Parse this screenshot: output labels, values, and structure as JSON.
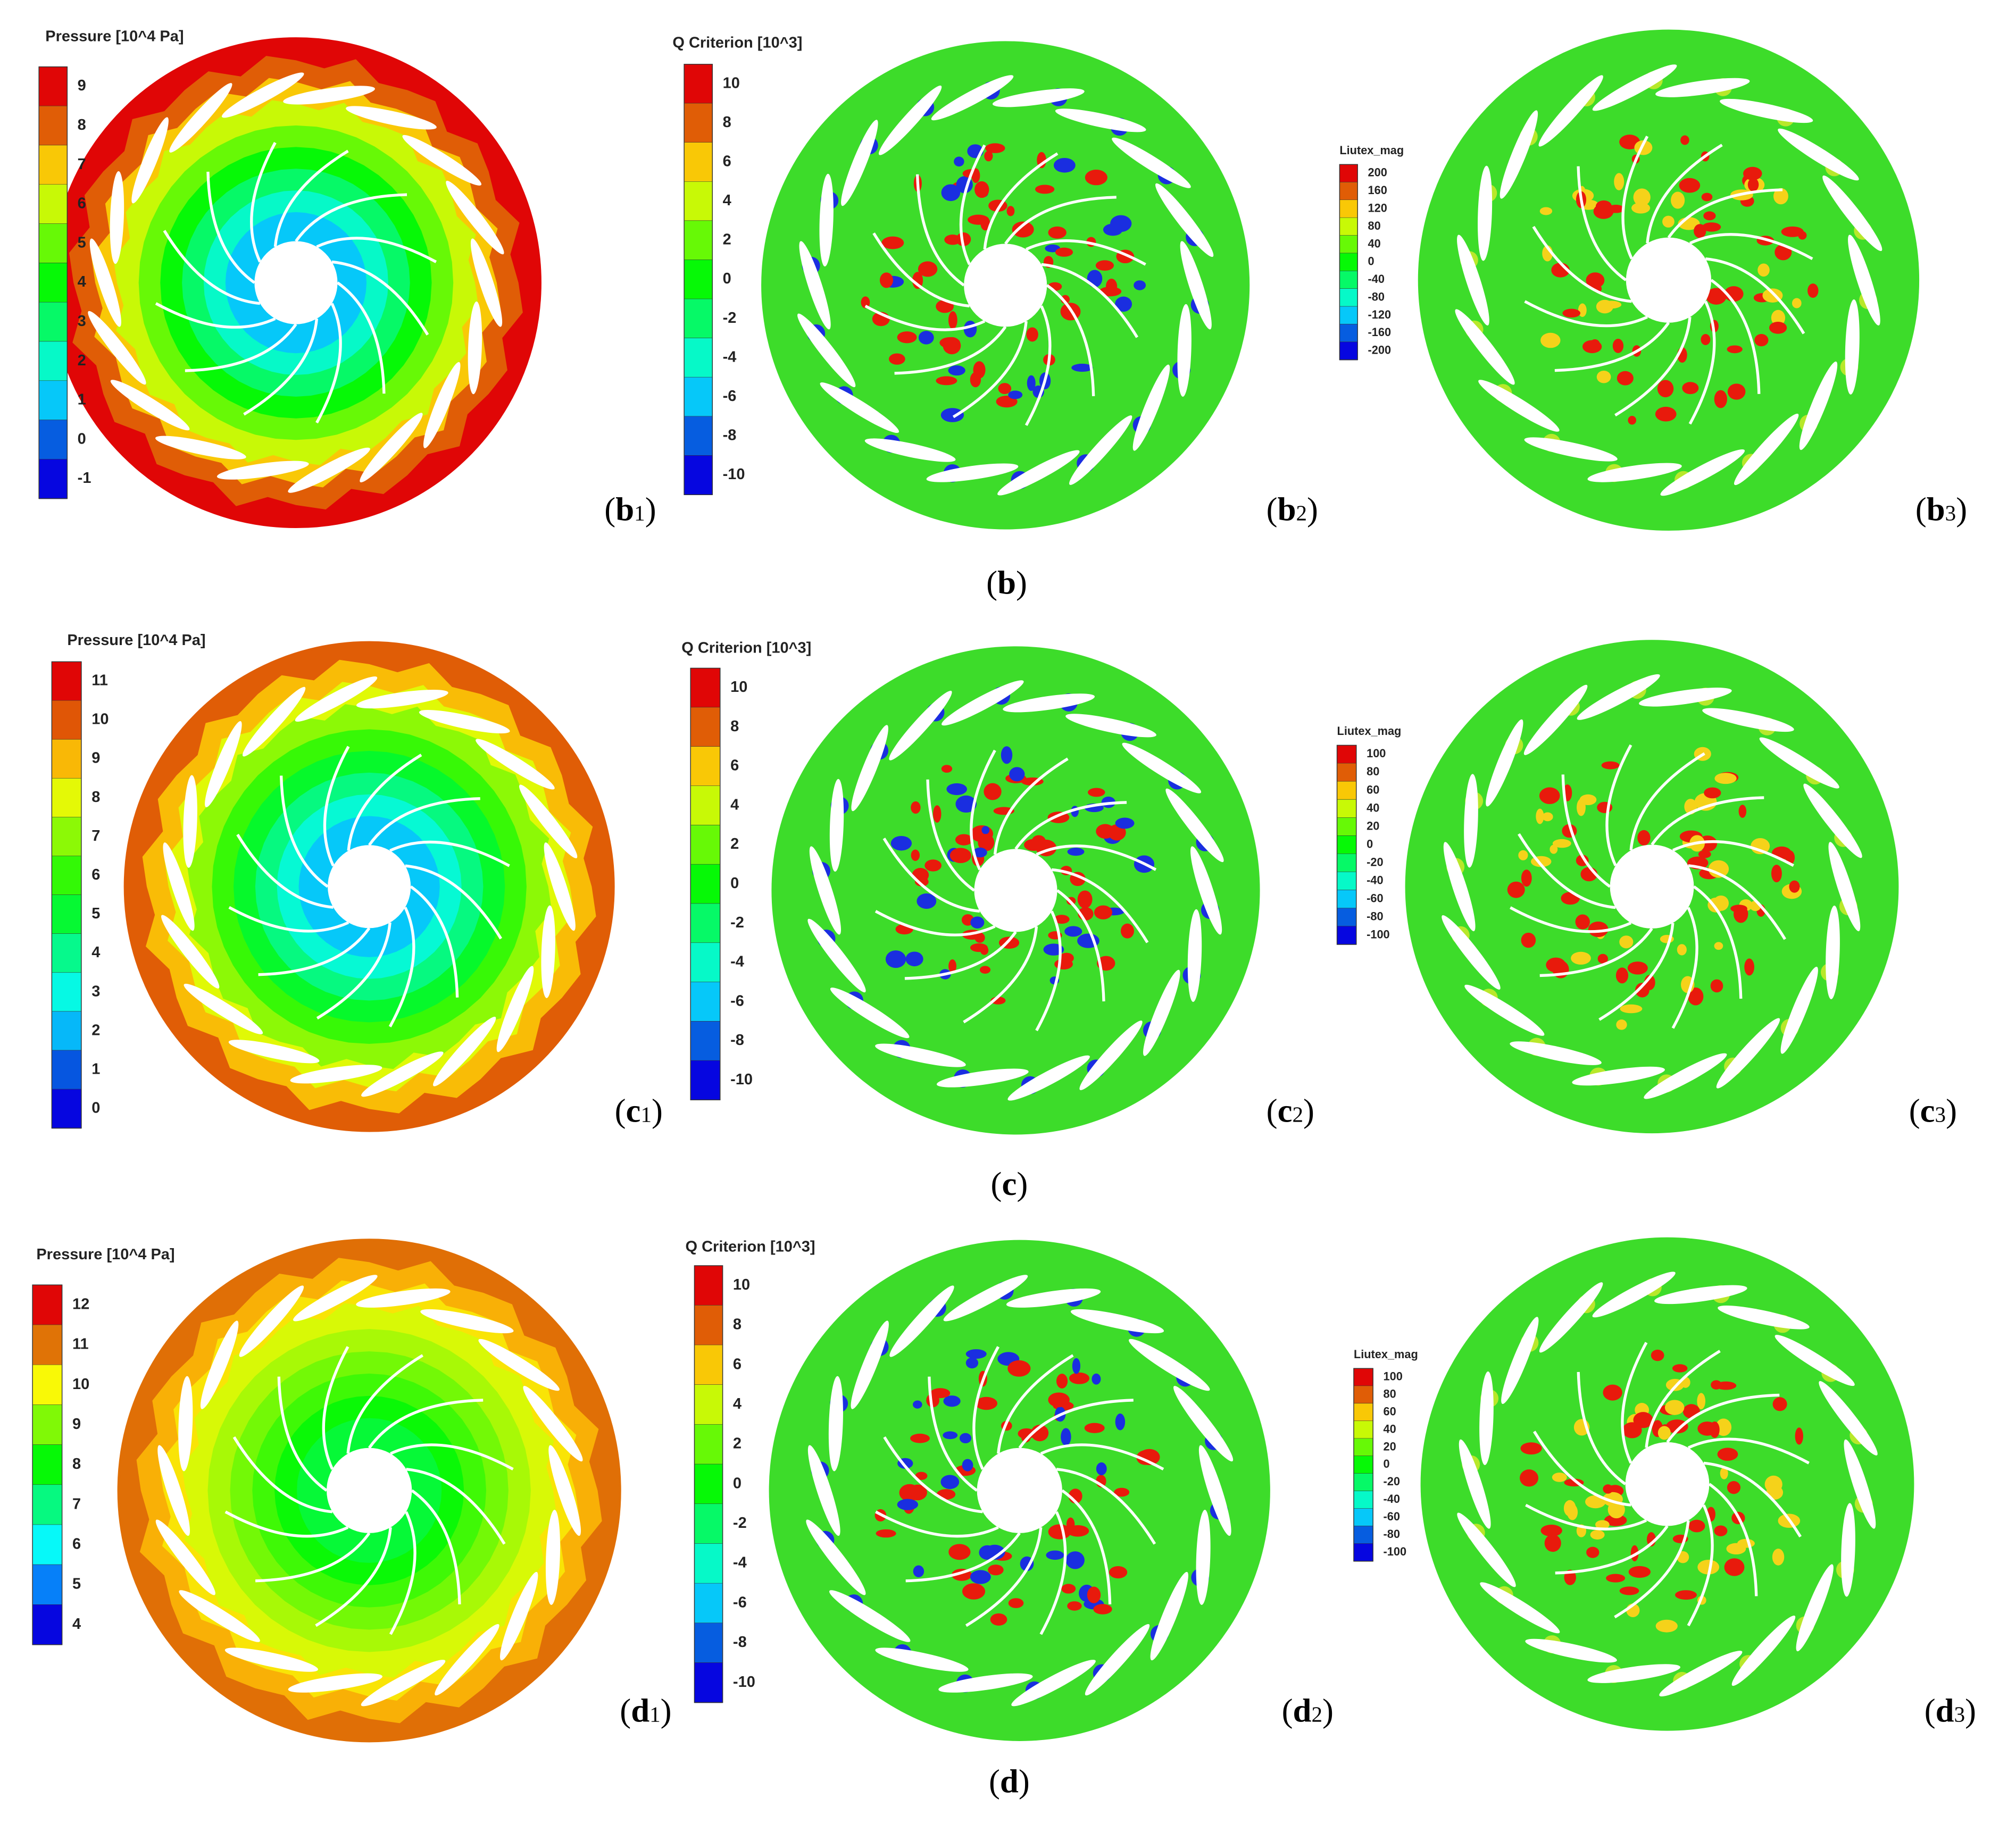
{
  "rows": [
    {
      "caption": [
        "(",
        "b",
        ")"
      ],
      "panels": [
        {
          "kind": "pressure",
          "legend": {
            "title": "Pressure [10^4 Pa]",
            "ticks": [
              9,
              8,
              7,
              6,
              5,
              4,
              3,
              2,
              1,
              0,
              -1
            ]
          },
          "label": [
            "(",
            "b",
            "1",
            ")"
          ]
        },
        {
          "kind": "vortex",
          "legend": {
            "title": "Q Criterion [10^3]",
            "ticks": [
              10,
              8,
              6,
              4,
              2,
              0,
              -2,
              -4,
              -6,
              -8,
              -10
            ]
          },
          "label": [
            "(",
            "b",
            "2",
            ")"
          ]
        },
        {
          "kind": "vortex",
          "legend": {
            "title": "Liutex_mag",
            "ticks": [
              200,
              160,
              120,
              80,
              40,
              0,
              -40,
              -80,
              -120,
              -160,
              -200
            ]
          },
          "label": [
            "(",
            "b",
            "3",
            ")"
          ]
        }
      ]
    },
    {
      "caption": [
        "(",
        "c",
        ")"
      ],
      "panels": [
        {
          "kind": "pressure",
          "legend": {
            "title": "Pressure [10^4 Pa]",
            "ticks": [
              11,
              10,
              9,
              8,
              7,
              6,
              5,
              4,
              3,
              2,
              1,
              0
            ]
          },
          "label": [
            "(",
            "c",
            "1",
            ")"
          ]
        },
        {
          "kind": "vortex",
          "legend": {
            "title": "Q Criterion [10^3]",
            "ticks": [
              10,
              8,
              6,
              4,
              2,
              0,
              -2,
              -4,
              -6,
              -8,
              -10
            ]
          },
          "label": [
            "(",
            "c",
            "2",
            ")"
          ]
        },
        {
          "kind": "vortex",
          "legend": {
            "title": "Liutex_mag",
            "ticks": [
              100,
              80,
              60,
              40,
              20,
              0,
              -20,
              -40,
              -60,
              -80,
              -100
            ]
          },
          "label": [
            "(",
            "c",
            "3",
            ")"
          ]
        }
      ]
    },
    {
      "caption": [
        "(",
        "d",
        ")"
      ],
      "panels": [
        {
          "kind": "pressure",
          "legend": {
            "title": "Pressure [10^4 Pa]",
            "ticks": [
              12,
              11,
              10,
              9,
              8,
              7,
              6,
              5,
              4
            ]
          },
          "label": [
            "(",
            "d",
            "1",
            ")"
          ]
        },
        {
          "kind": "vortex",
          "legend": {
            "title": "Q Criterion [10^3]",
            "ticks": [
              10,
              8,
              6,
              4,
              2,
              0,
              -2,
              -4,
              -6,
              -8,
              -10
            ]
          },
          "label": [
            "(",
            "d",
            "2",
            ")"
          ]
        },
        {
          "kind": "vortex",
          "legend": {
            "title": "Liutex_mag",
            "ticks": [
              100,
              80,
              60,
              40,
              20,
              0,
              -20,
              -40,
              -60,
              -80,
              -100
            ]
          },
          "label": [
            "(",
            "d",
            "3",
            ")"
          ]
        }
      ]
    }
  ]
}
